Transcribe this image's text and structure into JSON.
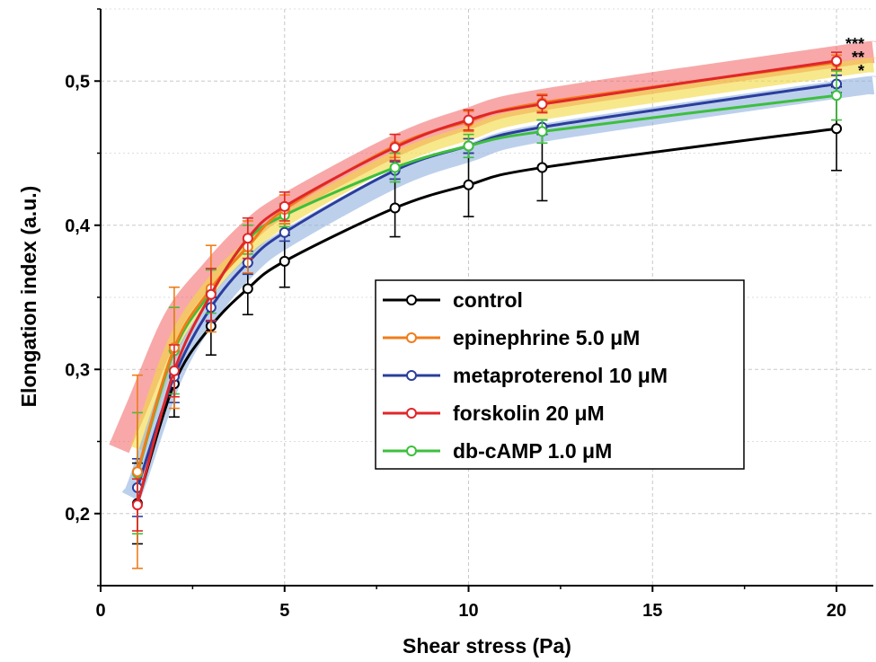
{
  "chart_data": {
    "type": "line",
    "title": "",
    "xlabel": "Shear stress (Pa)",
    "ylabel": "Elongation index (a.u.)",
    "xlim": [
      0,
      21
    ],
    "ylim": [
      0.15,
      0.55
    ],
    "xticks": [
      0,
      5,
      10,
      15,
      20
    ],
    "xtick_labels": [
      "0",
      "5",
      "10",
      "15",
      "20"
    ],
    "yticks": [
      0.2,
      0.3,
      0.4,
      0.5
    ],
    "ytick_labels": [
      "0,2",
      "0,3",
      "0,4",
      "0,5"
    ],
    "grid": true,
    "legend_position": "center-right",
    "x": [
      1,
      2,
      3,
      4,
      5,
      8,
      10,
      12,
      20
    ],
    "series": [
      {
        "name": "control",
        "color": "#000000",
        "values": [
          0.207,
          0.29,
          0.33,
          0.356,
          0.375,
          0.412,
          0.428,
          0.44,
          0.467
        ],
        "errors": [
          0.028,
          0.023,
          0.02,
          0.018,
          0.018,
          0.02,
          0.022,
          0.023,
          0.029
        ]
      },
      {
        "name": "epinephrine 5.0 μM",
        "color": "#f07c1a",
        "values": [
          0.229,
          0.315,
          0.356,
          0.385,
          0.411,
          0.455,
          0.472,
          0.485,
          0.513
        ],
        "errors": [
          0.067,
          0.042,
          0.03,
          0.018,
          0.01,
          0.008,
          0.007,
          0.006,
          0.005
        ]
      },
      {
        "name": "metaproterenol 10 μM",
        "color": "#2b3d9c",
        "values": [
          0.218,
          0.295,
          0.343,
          0.374,
          0.395,
          0.438,
          0.455,
          0.468,
          0.498
        ],
        "errors": [
          0.02,
          0.018,
          0.01,
          0.008,
          0.006,
          0.006,
          0.005,
          0.005,
          0.006
        ]
      },
      {
        "name": "forskolin 20 μM",
        "color": "#e0262a",
        "values": [
          0.206,
          0.299,
          0.352,
          0.391,
          0.413,
          0.454,
          0.473,
          0.484,
          0.514
        ],
        "errors": [
          0.018,
          0.018,
          0.018,
          0.014,
          0.01,
          0.009,
          0.007,
          0.006,
          0.006
        ]
      },
      {
        "name": "db-cAMP 1.0 μM",
        "color": "#3dbf3d",
        "values": [
          0.228,
          0.313,
          0.354,
          0.39,
          0.407,
          0.44,
          0.455,
          0.465,
          0.49
        ],
        "errors": [
          0.042,
          0.03,
          0.015,
          0.01,
          0.008,
          0.01,
          0.008,
          0.008,
          0.017
        ]
      }
    ],
    "bands": [
      {
        "color": "#f26060",
        "opacity": 0.55,
        "width": 24,
        "x": [
          0.5,
          1,
          2,
          3,
          4,
          5,
          8,
          10,
          12,
          20,
          21
        ],
        "y": [
          0.245,
          0.275,
          0.335,
          0.368,
          0.395,
          0.414,
          0.455,
          0.474,
          0.487,
          0.517,
          0.52
        ]
      },
      {
        "color": "#f2d840",
        "opacity": 0.6,
        "width": 16,
        "x": [
          1,
          2,
          3,
          4,
          5,
          8,
          10,
          12,
          20,
          21
        ],
        "y": [
          0.245,
          0.318,
          0.358,
          0.384,
          0.404,
          0.446,
          0.464,
          0.478,
          0.508,
          0.511
        ]
      },
      {
        "color": "#8fb0e0",
        "opacity": 0.6,
        "width": 20,
        "x": [
          0.8,
          1,
          2,
          3,
          4,
          5,
          8,
          10,
          12,
          20,
          21
        ],
        "y": [
          0.212,
          0.222,
          0.296,
          0.34,
          0.37,
          0.39,
          0.432,
          0.45,
          0.464,
          0.494,
          0.497
        ]
      }
    ],
    "annotations": [
      "***",
      "**",
      "*"
    ]
  }
}
